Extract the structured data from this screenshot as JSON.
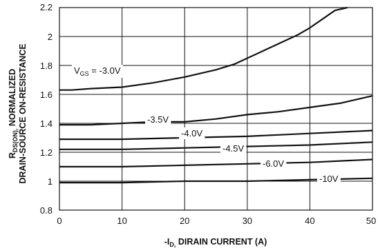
{
  "chart_data": {
    "type": "line",
    "xlabel": "DIRAIN CURRENT (A)",
    "xlabel_prefix": "-I",
    "xlabel_sub": "D,",
    "ylabel_line1_prefix": "R",
    "ylabel_line1_sub": "DS(ON),",
    "ylabel_line1_rest": "NORMALIZED",
    "ylabel_line2": "DRAIN-SOURCE ON-RESISTANCE",
    "xlim": [
      0,
      50
    ],
    "ylim": [
      0.8,
      2.2
    ],
    "x_ticks": [
      "0",
      "10",
      "20",
      "30",
      "40",
      "50"
    ],
    "y_ticks": [
      "0.8",
      "1",
      "1.2",
      "1.4",
      "1.6",
      "1.8",
      "2",
      "2.2"
    ],
    "grid": true,
    "series": [
      {
        "name": "-3.0V",
        "label_prefix": "V",
        "label_sub": "GS",
        "label_rest": " = -3.0V",
        "x": [
          0,
          2,
          5,
          10,
          15,
          20,
          25,
          28,
          30,
          33,
          36,
          38,
          40,
          42,
          44,
          46
        ],
        "y": [
          1.63,
          1.63,
          1.64,
          1.65,
          1.68,
          1.72,
          1.77,
          1.81,
          1.85,
          1.91,
          1.97,
          2.01,
          2.06,
          2.12,
          2.18,
          2.2
        ]
      },
      {
        "name": "-3.5V",
        "x": [
          0,
          5,
          10,
          15,
          20,
          25,
          30,
          35,
          40,
          45,
          50
        ],
        "y": [
          1.39,
          1.39,
          1.4,
          1.41,
          1.41,
          1.43,
          1.46,
          1.48,
          1.51,
          1.54,
          1.59
        ]
      },
      {
        "name": "-4.0V",
        "x": [
          0,
          10,
          20,
          30,
          40,
          50
        ],
        "y": [
          1.29,
          1.29,
          1.3,
          1.31,
          1.33,
          1.35
        ]
      },
      {
        "name": "-4.5V",
        "x": [
          0,
          10,
          20,
          30,
          40,
          50
        ],
        "y": [
          1.22,
          1.22,
          1.23,
          1.24,
          1.25,
          1.27
        ]
      },
      {
        "name": "-6.0V",
        "x": [
          0,
          10,
          20,
          30,
          40,
          50
        ],
        "y": [
          1.1,
          1.1,
          1.11,
          1.12,
          1.13,
          1.15
        ]
      },
      {
        "name": "-10V",
        "x": [
          0,
          10,
          20,
          30,
          40,
          50
        ],
        "y": [
          0.99,
          0.99,
          1.0,
          1.0,
          1.01,
          1.02
        ]
      }
    ]
  }
}
